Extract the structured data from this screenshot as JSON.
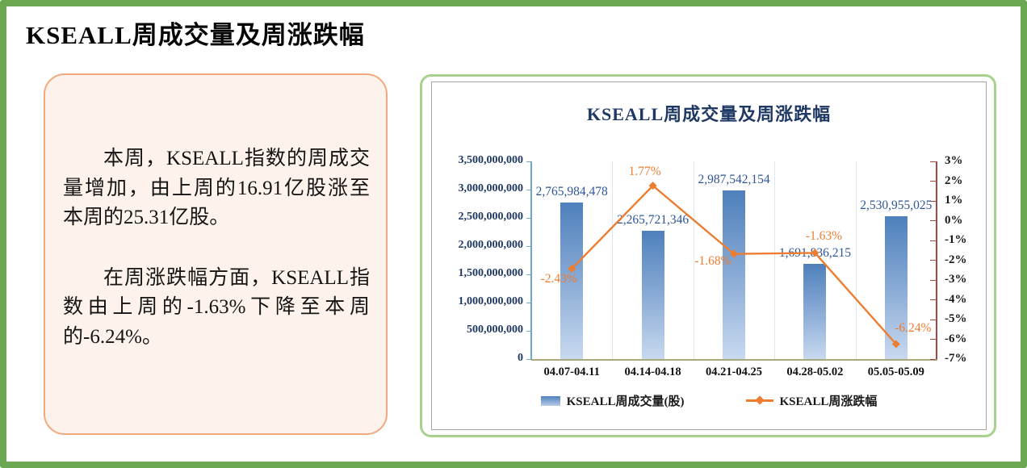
{
  "page": {
    "title": "KSEALL周成交量及周涨跌幅"
  },
  "summary": {
    "p1": "本周，KSEALL指数的周成交量增加，由上周的16.91亿股涨至本周的25.31亿股。",
    "p2": "在周涨跌幅方面，KSEALL指数由上周的-1.63%下降至本周的-6.24%。"
  },
  "chart_data": {
    "type": "bar+line",
    "title": "KSEALL周成交量及周涨跌幅",
    "categories": [
      "04.07-04.11",
      "04.14-04.18",
      "04.21-04.25",
      "04.28-05.02",
      "05.05-05.09"
    ],
    "series": [
      {
        "name": "KSEALL周成交量(股)",
        "type": "bar",
        "axis": "left",
        "values": [
          2765984478,
          2265721346,
          2987542154,
          1691836215,
          2530955025
        ],
        "labels": [
          "2,765,984,478",
          "2,265,721,346",
          "2,987,542,154",
          "1,691,836,215",
          "2,530,955,025"
        ]
      },
      {
        "name": "KSEALL周涨跌幅",
        "type": "line",
        "axis": "right",
        "values": [
          -2.43,
          1.77,
          -1.68,
          -1.63,
          -6.24
        ],
        "labels": [
          "-2.43%",
          "1.77%",
          "-1.68%",
          "-1.63%",
          "-6.24%"
        ]
      }
    ],
    "left_axis": {
      "min": 0,
      "max": 3500000000,
      "step": 500000000,
      "tick_labels_top_to_bottom": [
        "3,500,000,000",
        "3,000,000,000",
        "2,500,000,000",
        "2,000,000,000",
        "1,500,000,000",
        "1,000,000,000",
        "500,000,000",
        "0"
      ]
    },
    "right_axis": {
      "min": -7,
      "max": 3,
      "step": 1,
      "tick_labels_top_to_bottom": [
        "3%",
        "2%",
        "1%",
        "0%",
        "-1%",
        "-2%",
        "-3%",
        "-4%",
        "-5%",
        "-6%",
        "-7%"
      ]
    },
    "legend": {
      "position": "bottom",
      "entries": [
        "KSEALL周成交量(股)",
        "KSEALL周涨跌幅"
      ]
    },
    "grid": "vertical-category-separators",
    "colors": {
      "page_border": "#6CA851",
      "panel_border": "#A9D18E",
      "summary_border": "#F2A97E",
      "summary_bg": "#FDF3EC",
      "chart_title": "#1F3864",
      "bar_top": "#4E80BC",
      "bar_bottom": "#C8D9EF",
      "bar_label": "#2F5597",
      "line": "#ED7D31",
      "left_axis_line": "#6FA8C8",
      "right_axis_line": "#A04A42",
      "bottom_axis_line": "#ABA87B"
    }
  }
}
